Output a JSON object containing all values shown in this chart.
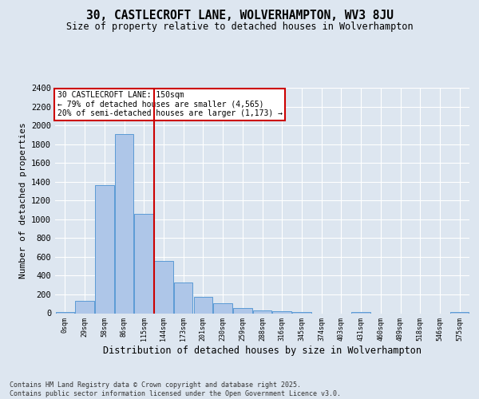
{
  "title_line1": "30, CASTLECROFT LANE, WOLVERHAMPTON, WV3 8JU",
  "title_line2": "Size of property relative to detached houses in Wolverhampton",
  "xlabel": "Distribution of detached houses by size in Wolverhampton",
  "ylabel": "Number of detached properties",
  "categories": [
    "0sqm",
    "29sqm",
    "58sqm",
    "86sqm",
    "115sqm",
    "144sqm",
    "173sqm",
    "201sqm",
    "230sqm",
    "259sqm",
    "288sqm",
    "316sqm",
    "345sqm",
    "374sqm",
    "403sqm",
    "431sqm",
    "460sqm",
    "489sqm",
    "518sqm",
    "546sqm",
    "575sqm"
  ],
  "values": [
    10,
    130,
    1360,
    1910,
    1055,
    555,
    330,
    170,
    110,
    55,
    30,
    20,
    10,
    0,
    0,
    10,
    0,
    0,
    0,
    0,
    10
  ],
  "bar_color": "#aec6e8",
  "bar_edge_color": "#5b9bd5",
  "vline_x_index": 5,
  "vline_color": "#cc0000",
  "annotation_text": "30 CASTLECROFT LANE: 150sqm\n← 79% of detached houses are smaller (4,565)\n20% of semi-detached houses are larger (1,173) →",
  "annotation_box_color": "#ffffff",
  "annotation_box_edge_color": "#cc0000",
  "bg_color": "#dde6f0",
  "plot_bg_color": "#dde6f0",
  "grid_color": "#ffffff",
  "footer": "Contains HM Land Registry data © Crown copyright and database right 2025.\nContains public sector information licensed under the Open Government Licence v3.0.",
  "ylim": [
    0,
    2400
  ],
  "yticks": [
    0,
    200,
    400,
    600,
    800,
    1000,
    1200,
    1400,
    1600,
    1800,
    2000,
    2200,
    2400
  ]
}
